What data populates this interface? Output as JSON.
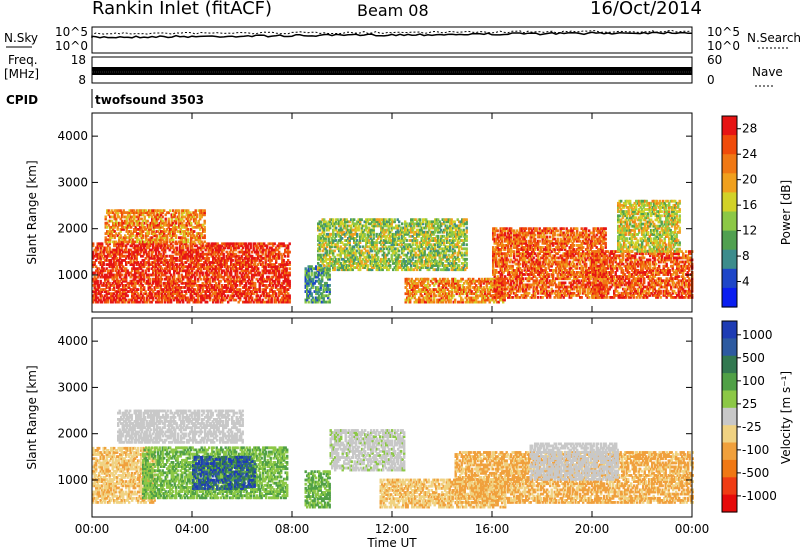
{
  "header": {
    "site": "Rankin Inlet (fitACF)",
    "beam": "Beam 08",
    "date": "16/Oct/2014"
  },
  "strip": {
    "nsky_label": "N.Sky",
    "nsky_top_tick": "10^5",
    "nsky_bottom_tick": "10^0",
    "nsearch_label": "N.Search",
    "nsearch_top_tick": "10^5",
    "nsearch_bottom_tick": "10^0",
    "freq_label_1": "Freq.",
    "freq_label_2": "[MHz]",
    "freq_top_tick": "18",
    "freq_bottom_tick": "8",
    "nave_label": "Nave",
    "nave_top_tick": "60",
    "nave_bottom_tick": "0",
    "cpid_label": "CPID",
    "cpid_value": "twofsound 3503"
  },
  "colors": {
    "power_scale": [
      "#0a1ef0",
      "#1e46c8",
      "#3c8c8c",
      "#50a050",
      "#8cc846",
      "#d2d228",
      "#f0a01e",
      "#f07814",
      "#f04b0a",
      "#e61414"
    ],
    "velocity_scale": [
      "#1e3cb4",
      "#2d5aa0",
      "#327850",
      "#50a046",
      "#8cc846",
      "#c8c8c8",
      "#f0d282",
      "#f0a03c",
      "#f07814",
      "#f03c14",
      "#e60a0a"
    ]
  },
  "chart_data": [
    {
      "type": "heatmap",
      "panel": "power",
      "title": "",
      "xlabel": "",
      "ylabel": "Slant Range [km]",
      "x_ticks": [
        "00:00",
        "04:00",
        "08:00",
        "12:00",
        "16:00",
        "20:00",
        "00:00"
      ],
      "y_ticks": [
        1000,
        2000,
        3000,
        4000
      ],
      "ylim": [
        200,
        4500
      ],
      "xlim_hours": [
        0,
        24
      ],
      "colorbar": {
        "label": "Power [dB]",
        "ticks": [
          "4",
          "8",
          "12",
          "16",
          "20",
          "24",
          "28"
        ],
        "range": [
          0,
          30
        ]
      },
      "regions": [
        {
          "t": [
            0.0,
            7.9
          ],
          "r": [
            400,
            1700
          ],
          "v": 27
        },
        {
          "t": [
            0.5,
            4.5
          ],
          "r": [
            1700,
            2400
          ],
          "v": 22
        },
        {
          "t": [
            8.5,
            9.5
          ],
          "r": [
            400,
            1200
          ],
          "v": 9
        },
        {
          "t": [
            9.0,
            15.0
          ],
          "r": [
            1100,
            2200
          ],
          "v": 14
        },
        {
          "t": [
            12.5,
            16.5
          ],
          "r": [
            400,
            900
          ],
          "v": 22
        },
        {
          "t": [
            16.0,
            20.5
          ],
          "r": [
            500,
            2000
          ],
          "v": 24
        },
        {
          "t": [
            20.0,
            24.0
          ],
          "r": [
            500,
            1500
          ],
          "v": 25
        },
        {
          "t": [
            21.0,
            23.5
          ],
          "r": [
            1500,
            2600
          ],
          "v": 16
        }
      ]
    },
    {
      "type": "heatmap",
      "panel": "velocity",
      "title": "",
      "xlabel": "Time UT",
      "ylabel": "Slant Range [km]",
      "x_ticks": [
        "00:00",
        "04:00",
        "08:00",
        "12:00",
        "16:00",
        "20:00",
        "00:00"
      ],
      "y_ticks": [
        1000,
        2000,
        3000,
        4000
      ],
      "ylim": [
        200,
        4500
      ],
      "xlim_hours": [
        0,
        24
      ],
      "colorbar": {
        "label": "Velocity [m s⁻¹]",
        "ticks": [
          "1000",
          "500",
          "100",
          "25",
          "-25",
          "-100",
          "-500",
          "-1000"
        ],
        "range": [
          -1000,
          1000
        ]
      },
      "regions": [
        {
          "t": [
            0.0,
            2.5
          ],
          "r": [
            500,
            1700
          ],
          "v": -250
        },
        {
          "t": [
            2.0,
            7.8
          ],
          "r": [
            600,
            1700
          ],
          "v": 250
        },
        {
          "t": [
            4.0,
            6.5
          ],
          "r": [
            800,
            1500
          ],
          "v": 700
        },
        {
          "t": [
            1.0,
            6.0
          ],
          "r": [
            1800,
            2500
          ],
          "v": 0
        },
        {
          "t": [
            8.5,
            9.5
          ],
          "r": [
            400,
            1200
          ],
          "v": 300
        },
        {
          "t": [
            9.5,
            12.5
          ],
          "r": [
            1200,
            2100
          ],
          "v": 60
        },
        {
          "t": [
            11.5,
            16.5
          ],
          "r": [
            400,
            1000
          ],
          "v": -250
        },
        {
          "t": [
            14.5,
            24.0
          ],
          "r": [
            500,
            1600
          ],
          "v": -300
        },
        {
          "t": [
            17.5,
            21.0
          ],
          "r": [
            1000,
            1800
          ],
          "v": 0
        }
      ]
    }
  ]
}
